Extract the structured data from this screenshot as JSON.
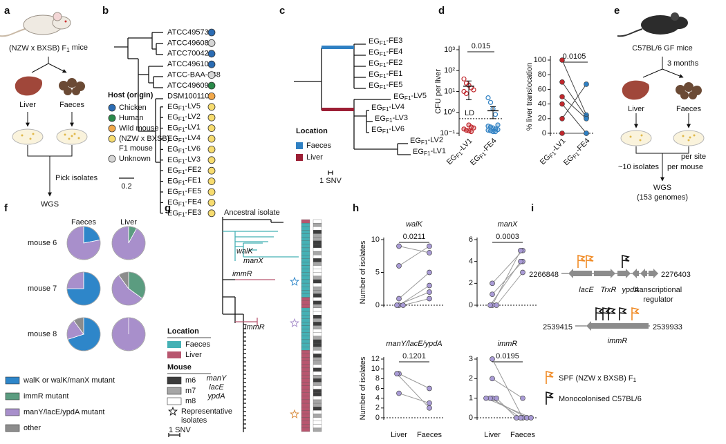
{
  "panel_labels": [
    "a",
    "b",
    "c",
    "d",
    "e",
    "f",
    "g",
    "h",
    "i"
  ],
  "panel_a": {
    "mice": "(NZW x BXSB) F1 mice",
    "liver": "Liver",
    "faeces": "Faeces",
    "step": "Pick isolates",
    "output": "WGS"
  },
  "panel_b": {
    "leaves": [
      {
        "label": "ATCC49573",
        "color": "#2b6cb3"
      },
      {
        "label": "ATCC49608",
        "color": "#d6d6d6"
      },
      {
        "label": "ATCC700425",
        "color": "#2b6cb3"
      },
      {
        "label": "ATCC49610",
        "color": "#2b6cb3"
      },
      {
        "label": "ATCC-BAA-748",
        "color": "#d6d6d6"
      },
      {
        "label": "ATCC49609",
        "color": "#2a8a4a"
      },
      {
        "label": "DSM100110",
        "color": "#f2a84a"
      },
      {
        "label": "EGF1-LV5",
        "color": "#f7dc6f"
      },
      {
        "label": "EGF1-LV2",
        "color": "#f7dc6f"
      },
      {
        "label": "EGF1-LV1",
        "color": "#f7dc6f"
      },
      {
        "label": "EGF1-LV4",
        "color": "#f7dc6f"
      },
      {
        "label": "EGF1-LV6",
        "color": "#f7dc6f"
      },
      {
        "label": "EGF1-LV3",
        "color": "#f7dc6f"
      },
      {
        "label": "EGF1-FE2",
        "color": "#f7dc6f"
      },
      {
        "label": "EGF1-FE1",
        "color": "#f7dc6f"
      },
      {
        "label": "EGF1-FE5",
        "color": "#f7dc6f"
      },
      {
        "label": "EGF1-FE4",
        "color": "#f7dc6f"
      },
      {
        "label": "EGF1-FE3",
        "color": "#f7dc6f"
      }
    ],
    "legend_title": "Host (origin)",
    "legend": [
      {
        "lines": [
          "Chicken"
        ],
        "color": "#2b6cb3"
      },
      {
        "lines": [
          "Human"
        ],
        "color": "#2a8a4a"
      },
      {
        "lines": [
          "Wild mouse"
        ],
        "color": "#f2a84a"
      },
      {
        "lines": [
          "(NZW x BXSB)",
          "F1 mouse"
        ],
        "color": "#f7dc6f"
      },
      {
        "lines": [
          "Unknown"
        ],
        "color": "#d6d6d6"
      }
    ],
    "scale": "0.2"
  },
  "panel_c": {
    "leaves": [
      "EGF1-FE3",
      "EGF1-FE4",
      "EGF1-FE2",
      "EGF1-FE1",
      "EGF1-FE5",
      "EGF1-LV5",
      "EGF1-LV4",
      "EGF1-LV3",
      "EGF1-LV6",
      "EGF1-LV2",
      "EGF1-LV1"
    ],
    "legend_title": "Location",
    "legend": [
      {
        "name": "Faeces",
        "color": "#2f80c3"
      },
      {
        "name": "Liver",
        "color": "#9c1f35"
      }
    ],
    "scale": "1 SNV"
  },
  "panel_d": {
    "categories": [
      "EGF1-LV1",
      "EGF1-FE4"
    ],
    "colors": [
      "#c0282d",
      "#2f80c3"
    ],
    "cfu": {
      "ylabel": "CFU per liver",
      "log": true,
      "ylim": [
        0.1,
        1000
      ],
      "yticks": [
        {
          "value": 0.1,
          "label": "10⁻¹"
        },
        {
          "value": 1,
          "label": "10⁰"
        },
        {
          "value": 10,
          "label": "10¹"
        },
        {
          "value": 100,
          "label": "10²"
        },
        {
          "value": 1000,
          "label": "10³"
        }
      ],
      "values": [
        [
          40,
          25,
          20,
          15,
          12,
          10,
          8,
          0.25,
          0.2,
          0.18,
          0.16,
          0.14,
          0.13,
          0.12
        ],
        [
          5,
          3,
          1.5,
          0.8,
          0.25,
          0.22,
          0.2,
          0.18,
          0.16,
          0.15,
          0.14,
          0.13,
          0.12,
          0.12
        ]
      ],
      "means": [
        18,
        1.2
      ],
      "errors": [
        14,
        0.7
      ],
      "detection_limit": 0.5,
      "detection_label": "LD",
      "p": "0.015"
    },
    "translocation": {
      "ylabel": "% liver translocation",
      "ylim": [
        0,
        100
      ],
      "yticks": [
        0,
        20,
        40,
        60,
        80,
        100
      ],
      "values": [
        [
          100,
          70,
          50,
          40,
          20,
          0
        ],
        [
          25,
          22,
          20,
          0,
          67,
          0
        ]
      ],
      "p": "0.0105"
    }
  },
  "panel_e": {
    "mice": "C57BL/6 GF mice",
    "time": "3 months",
    "liver": "Liver",
    "faeces": "Faeces",
    "sampling": [
      "~10 isolates",
      "per site",
      "per mouse"
    ],
    "output": [
      "WGS",
      "(153 genomes)"
    ]
  },
  "panel_f": {
    "columns": [
      "Faeces",
      "Liver"
    ],
    "rows": [
      {
        "name": "mouse 6",
        "values": [
          [
            22,
            0,
            78,
            0
          ],
          [
            0,
            8,
            92,
            0
          ]
        ]
      },
      {
        "name": "mouse 7",
        "values": [
          [
            75,
            0,
            25,
            0
          ],
          [
            0,
            35,
            55,
            10
          ]
        ]
      },
      {
        "name": "mouse 8",
        "values": [
          [
            70,
            0,
            20,
            10
          ],
          [
            0,
            0,
            100,
            0
          ]
        ]
      }
    ],
    "legend": [
      {
        "name": "walK or walK/manX mutant",
        "color": "#2e86c9"
      },
      {
        "name": "immR mutant",
        "color": "#5b9c80"
      },
      {
        "name": "manY/lacE/ypdA mutant",
        "color": "#a88fcb"
      },
      {
        "name": "other",
        "color": "#8c8c8c"
      }
    ]
  },
  "panel_g": {
    "root": "Ancestral isolate",
    "mutations": [
      "walK",
      "manX",
      "immR",
      "immR",
      "manY",
      "lacE",
      "ypdA"
    ],
    "location_title": "Location",
    "location": [
      {
        "name": "Faeces",
        "color": "#45b1b5"
      },
      {
        "name": "Liver",
        "color": "#b8566f"
      }
    ],
    "mouse_title": "Mouse",
    "mouse": [
      {
        "name": "m6",
        "color": "#3c3c3c"
      },
      {
        "name": "m7",
        "color": "#a6a6a6"
      },
      {
        "name": "m8",
        "color": "#ffffff"
      }
    ],
    "representative": [
      "Representative",
      "isolates"
    ],
    "scale": "1 SNV"
  },
  "panel_h": {
    "ylabel": "Number of isolates",
    "categories": [
      "Liver",
      "Faeces"
    ],
    "color": "#a99bd6",
    "charts": [
      {
        "title": "walK",
        "ylim": [
          0,
          10
        ],
        "yticks": [
          0,
          5,
          10
        ],
        "liver": [
          9,
          6,
          1,
          0,
          0,
          0
        ],
        "faeces": [
          8,
          9,
          5,
          3,
          2,
          1
        ],
        "p": "0.0211"
      },
      {
        "title": "manX",
        "ylim": [
          0,
          6
        ],
        "yticks": [
          0,
          2,
          4,
          6
        ],
        "liver": [
          2,
          1,
          0,
          0,
          0
        ],
        "faeces": [
          5,
          4,
          5,
          4,
          3
        ],
        "p": "0.0003"
      },
      {
        "title": "manY/lacE/ypdA",
        "ylim": [
          0,
          12
        ],
        "yticks": [
          0,
          2,
          4,
          6,
          8,
          10,
          12
        ],
        "liver": [
          9,
          9,
          5
        ],
        "faeces": [
          6,
          2,
          3
        ],
        "p": "0.1201"
      },
      {
        "title": "immR",
        "ylim": [
          0,
          3
        ],
        "yticks": [
          0,
          1,
          2,
          3
        ],
        "liver": [
          3,
          2,
          1,
          1,
          1,
          1
        ],
        "faeces": [
          0,
          1,
          0,
          0,
          0,
          0
        ],
        "p": "0.0195"
      }
    ]
  },
  "panel_i": {
    "track1": {
      "start": "2266848",
      "end": "2276403",
      "genes": [
        "lacE",
        "TrxR",
        "ypdA"
      ],
      "regulator": [
        "transcriptional",
        "regulator"
      ]
    },
    "track2": {
      "start": "2539415",
      "end": "2539933",
      "gene": "immR"
    },
    "legend": [
      {
        "name": "SPF (NZW x BXSB) F1",
        "color": "#f08a24"
      },
      {
        "name": "Monocolonised C57BL/6",
        "color": "#111111"
      }
    ]
  }
}
